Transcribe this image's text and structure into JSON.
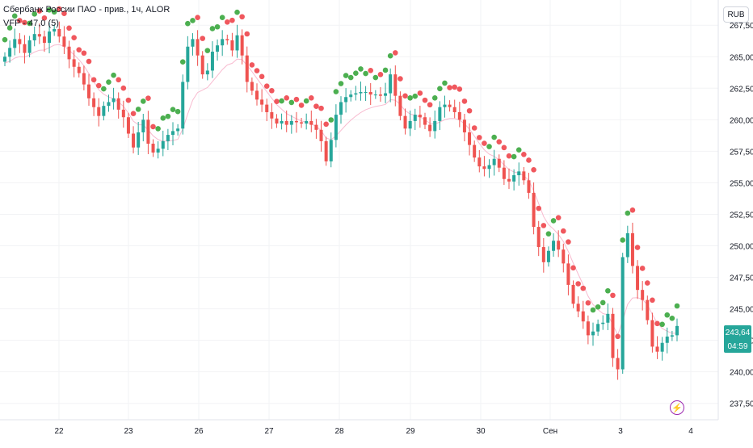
{
  "header": {
    "symbol_line": "Сбербанк России ПАО - прив., 1ч, ALOR",
    "indicator_line": "VFP - 47,0 (5)",
    "currency": "RUB"
  },
  "last_price": {
    "value": "243,64",
    "countdown": "04:59"
  },
  "badges": {
    "bolt_icon": "lightning-icon"
  },
  "colors": {
    "up": "#26a69a",
    "down": "#ef5350",
    "dot_green": "#4caf50",
    "dot_red": "#f0575d",
    "vwap_line": "#f8bbd0",
    "accent_badge": "#9c27b0"
  },
  "chart_data": {
    "type": "candlestick",
    "timeframe": "1h",
    "x_tick_labels": [
      "22",
      "23",
      "26",
      "27",
      "28",
      "29",
      "30",
      "Сен",
      "3",
      "4"
    ],
    "y_tick_labels": [
      "267,50",
      "265,00",
      "262,50",
      "260,00",
      "257,50",
      "255,00",
      "252,50",
      "250,00",
      "247,50",
      "245,00",
      "242,50",
      "240,00",
      "237,50"
    ],
    "y_ticks": [
      267.5,
      265.0,
      262.5,
      260.0,
      257.5,
      255.0,
      252.5,
      250.0,
      247.5,
      245.0,
      242.5,
      240.0,
      237.5
    ],
    "ylim": [
      236.2,
      269.5
    ],
    "last_value": 243.64,
    "close_series": [
      265.0,
      265.7,
      266.4,
      266.0,
      265.3,
      266.3,
      266.8,
      266.6,
      266.1,
      267.0,
      267.2,
      266.6,
      265.8,
      264.8,
      264.2,
      263.7,
      262.8,
      261.7,
      261.0,
      260.3,
      261.1,
      261.4,
      261.7,
      260.8,
      260.2,
      258.9,
      257.8,
      259.0,
      260.0,
      258.1,
      257.4,
      257.7,
      258.3,
      258.8,
      259.1,
      259.3,
      263.0,
      265.8,
      266.4,
      265.1,
      263.6,
      263.9,
      265.4,
      265.9,
      266.4,
      266.3,
      265.5,
      266.7,
      265.1,
      263.0,
      262.3,
      261.6,
      261.2,
      260.6,
      260.1,
      259.7,
      259.9,
      259.6,
      259.9,
      259.8,
      259.7,
      259.9,
      259.6,
      259.2,
      258.3,
      256.7,
      258.4,
      260.4,
      261.4,
      261.8,
      262.0,
      262.1,
      262.2,
      262.2,
      262.0,
      262.0,
      261.9,
      262.1,
      263.6,
      261.9,
      260.3,
      259.3,
      259.9,
      260.4,
      260.2,
      259.6,
      259.1,
      259.9,
      261.0,
      261.2,
      261.0,
      260.6,
      260.0,
      259.0,
      258.0,
      257.0,
      256.3,
      256.1,
      256.4,
      256.9,
      256.2,
      255.3,
      255.1,
      255.6,
      255.9,
      255.2,
      254.2,
      251.5,
      249.9,
      248.7,
      249.6,
      250.4,
      249.7,
      248.6,
      246.9,
      245.4,
      244.8,
      244.0,
      242.9,
      243.2,
      243.8,
      243.9,
      244.6,
      241.1,
      240.2,
      249.1,
      251.0,
      248.4,
      246.5,
      245.7,
      244.1,
      242.0,
      241.6,
      242.3,
      242.8,
      242.9,
      243.64
    ]
  }
}
